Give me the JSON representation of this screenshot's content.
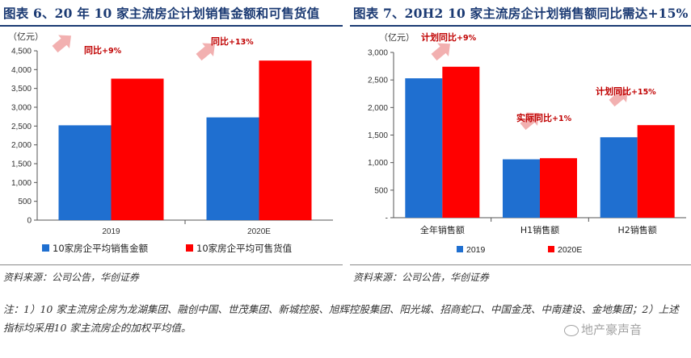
{
  "colors": {
    "title": "#1b3a73",
    "series2019": "#1f6fd0",
    "series2020": "#ff0000",
    "arrow": "#f2b0b0",
    "annotation": "#c00000"
  },
  "chart_data": [
    {
      "type": "bar",
      "title": "图表 6、20 年 10 家主流房企计划销售金额和可售货值",
      "ylabel": "（亿元）",
      "ylim": [
        0,
        4500
      ],
      "yticks": [
        "0",
        "500",
        "1,000",
        "1,500",
        "2,000",
        "2,500",
        "3,000",
        "3,500",
        "4,000",
        "4,500"
      ],
      "categories": [
        "2019",
        "2020E"
      ],
      "series": [
        {
          "name": "10家房企平均销售金额",
          "values": [
            2520,
            2730
          ]
        },
        {
          "name": "10家房企平均可售货值",
          "values": [
            3760,
            4240
          ]
        }
      ],
      "annotations": [
        {
          "prefix": "同比",
          "value": "+9%"
        },
        {
          "prefix": "同比",
          "value": "+13%"
        }
      ],
      "legend_position": "bottom"
    },
    {
      "type": "bar",
      "title": "图表 7、20H2 10 家主流房企计划销售额同比需达+15%",
      "ylabel": "（亿元）",
      "ylim": [
        0,
        3000
      ],
      "yticks": [
        "-",
        "500",
        "1,000",
        "1,500",
        "2,000",
        "2,500",
        "3,000"
      ],
      "categories": [
        "全年销售额",
        "H1销售额",
        "H2销售额"
      ],
      "series": [
        {
          "name": "2019",
          "values": [
            2530,
            1060,
            1460
          ]
        },
        {
          "name": "2020E",
          "values": [
            2740,
            1080,
            1680
          ]
        }
      ],
      "annotations": [
        {
          "prefix": "计划同比",
          "value": "+9%"
        },
        {
          "prefix": "实际同比",
          "value": "+1%"
        },
        {
          "prefix": "计划同比",
          "value": "+15%"
        }
      ],
      "legend_position": "bottom"
    }
  ],
  "source_left": "资料来源：公司公告，华创证券",
  "source_right": "资料来源：公司公告，华创证券",
  "note": "注：1）10 家主流房企房为龙湖集团、融创中国、世茂集团、新城控股、旭辉控股集团、阳光城、招商蛇口、中国金茂、中南建设、金地集团；2）上述指标均采用10 家主流房企的加权平均值。",
  "watermark": "地产豪声音"
}
